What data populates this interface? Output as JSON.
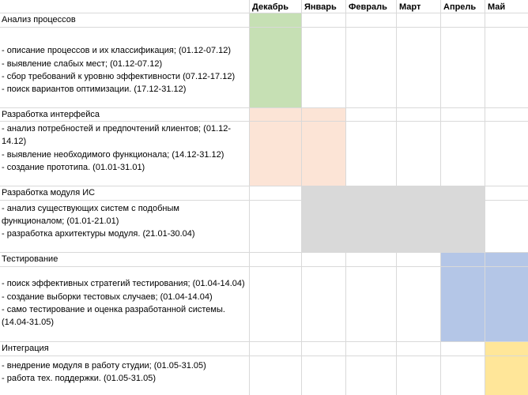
{
  "months": [
    "Декабрь",
    "Январь",
    "Февраль",
    "Март",
    "Апрель",
    "Май"
  ],
  "colors": {
    "green": "#c6e0b4",
    "peach": "#fce4d6",
    "gray": "#d9d9d9",
    "blue": "#b4c6e7",
    "yellow": "#ffe699"
  },
  "tasks": [
    {
      "title": "Анализ процессов",
      "lines": [
        "- описание процессов и их классификация; (01.12-07.12)",
        "- выявление слабых мест; (01.12-07.12)",
        "- сбор требований к уровню эффективности (07.12-17.12)",
        "- поиск вариантов оптимизации. (17.12-31.12)"
      ]
    },
    {
      "title": "Разработка интерфейса",
      "lines": [
        "- анализ потребностей и предпочтений клиентов; (01.12-",
        "14.12)",
        "- выявление необходимого функционала; (14.12-31.12)",
        "- создание прототипа. (01.01-31.01)"
      ]
    },
    {
      "title": "Разработка модуля ИС",
      "lines": [
        "- анализ существующих систем с подобным",
        "функционалом; (01.01-21.01)",
        "- разработка архитектуры модуля. (21.01-30.04)"
      ]
    },
    {
      "title": "Тестирование",
      "lines": [
        "- поиск эффективных стратегий тестирования; (01.04-14.04)",
        "- создание выборки тестовых случаев; (01.04-14.04)",
        "- само тестирование и оценка разработанной системы.",
        "(14.04-31.05)"
      ]
    },
    {
      "title": "Интеграция",
      "lines": [
        "- внедрение модуля в работу студии; (01.05-31.05)",
        "- работа тех. поддержки. (01.05-31.05)"
      ]
    }
  ]
}
